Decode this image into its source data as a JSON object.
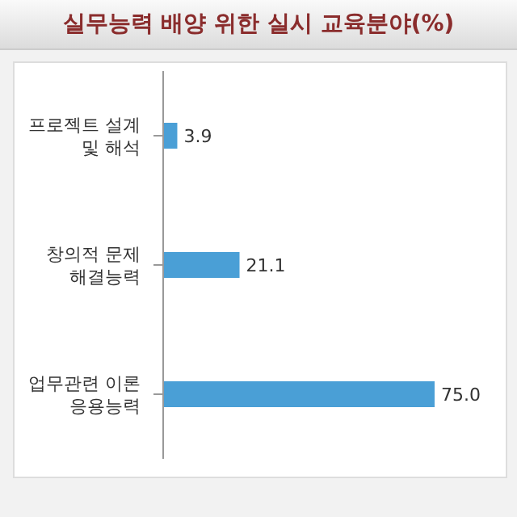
{
  "chart_data": {
    "type": "bar",
    "orientation": "horizontal",
    "title": "실무능력 배양 위한 실시 교육분야(%)",
    "categories": [
      "프로젝트 설계\n및 해석",
      "창의적 문제\n해결능력",
      "업무관련 이론\n응용능력"
    ],
    "values": [
      3.9,
      21.1,
      75.0
    ],
    "value_labels": [
      "3.9",
      "21.1",
      "75.0"
    ],
    "color": "#4a9fd6"
  }
}
